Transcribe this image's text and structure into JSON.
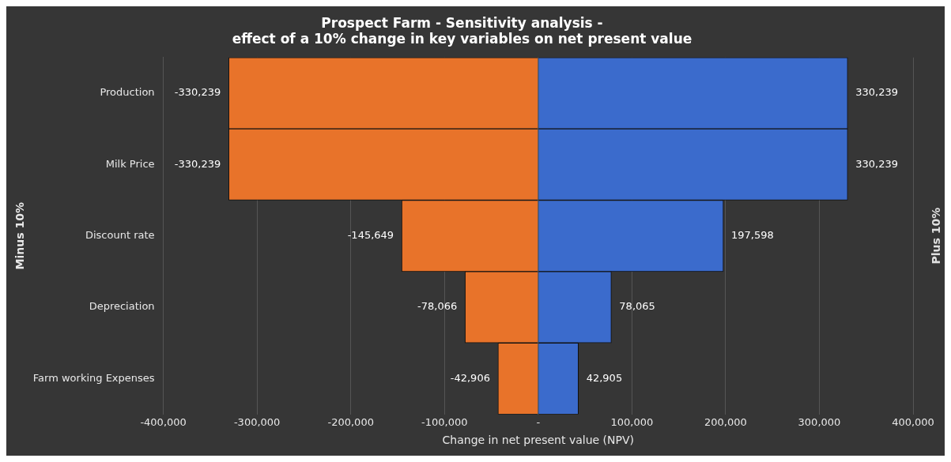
{
  "chart_data": {
    "type": "bar",
    "orientation": "horizontal",
    "stacked": true,
    "title": "Prospect Farm - Sensitivity analysis -",
    "subtitle": "effect of a 10% change in key variables on net present value",
    "xlabel": "Change in net present value (NPV)",
    "ylabel": "Minus 10%",
    "y2label": "Plus 10%",
    "categories": [
      "Production",
      "Milk Price",
      "Discount rate",
      "Depreciation",
      "Farm working Expenses"
    ],
    "series": [
      {
        "color": "#e8732a",
        "values": [
          -330239,
          -330239,
          -145649,
          -78066,
          -42906
        ],
        "value_labels": [
          "-330,239",
          "-330,239",
          "-145,649",
          "-78,066",
          "-42,906"
        ]
      },
      {
        "color": "#3b6bcc",
        "values": [
          330239,
          330239,
          197598,
          78065,
          42905
        ],
        "value_labels": [
          "330,239",
          "330,239",
          "197,598",
          "78,065",
          "42,905"
        ]
      }
    ],
    "xlim": [
      -400000,
      400000
    ],
    "xticks": [
      {
        "value": -400000,
        "label": "-400,000"
      },
      {
        "value": -300000,
        "label": "-300,000"
      },
      {
        "value": -200000,
        "label": "-200,000"
      },
      {
        "value": -100000,
        "label": "-100,000"
      },
      {
        "value": 0,
        "label": "-"
      },
      {
        "value": 100000,
        "label": "100,000"
      },
      {
        "value": 200000,
        "label": "200,000"
      },
      {
        "value": 300000,
        "label": "300,000"
      },
      {
        "value": 400000,
        "label": "400,000"
      }
    ],
    "grid": "x",
    "legend": false
  }
}
